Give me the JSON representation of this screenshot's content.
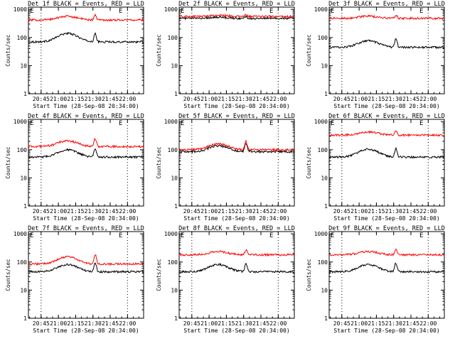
{
  "figure": {
    "y_axis_label": "Counts/sec",
    "x_axis_label": "Start Time (28-Sep-08 20:34:00)",
    "corner_marks": [
      "E",
      "E"
    ],
    "colors": {
      "events": "#000000",
      "lld": "#ff0000",
      "axes": "#000000",
      "background": "#ffffff"
    }
  },
  "chart_data": [
    {
      "type": "line",
      "title": "Det 1f BLACK = Events, RED = LLD",
      "time_ticks": [
        "20:45",
        "21:00",
        "21:15",
        "21:30",
        "21:45",
        "22:00"
      ],
      "y_ticks": [
        "1",
        "10",
        "100",
        "1000"
      ],
      "ylim": [
        1,
        1200
      ],
      "yscale": "log",
      "xlim_minutes": [
        0,
        100
      ],
      "x_tick_minutes": [
        11,
        26,
        41,
        56,
        71,
        86
      ],
      "dotted_x_minutes": [
        11,
        86
      ],
      "series": [
        {
          "name": "Events",
          "base": 70,
          "bump": 2.0,
          "peak": 1.9
        },
        {
          "name": "LLD",
          "base": 420,
          "bump": 1.35,
          "peak": 1.5
        }
      ]
    },
    {
      "type": "line",
      "title": "Det 2f BLACK = Events, RED = LLD",
      "time_ticks": [
        "20:45",
        "21:00",
        "21:15",
        "21:30",
        "21:45",
        "22:00"
      ],
      "y_ticks": [
        "1",
        "10",
        "100",
        "1000"
      ],
      "ylim": [
        1,
        1200
      ],
      "yscale": "log",
      "xlim_minutes": [
        0,
        100
      ],
      "x_tick_minutes": [
        11,
        26,
        41,
        56,
        71,
        86
      ],
      "dotted_x_minutes": [
        11,
        86
      ],
      "series": [
        {
          "name": "Events",
          "base": 480,
          "bump": 1.1,
          "peak": 1.15
        },
        {
          "name": "LLD",
          "base": 560,
          "bump": 1.1,
          "peak": 1.15
        }
      ]
    },
    {
      "type": "line",
      "title": "Det 3f BLACK = Events, RED = LLD",
      "time_ticks": [
        "20:45",
        "21:00",
        "21:15",
        "21:30",
        "21:45",
        "22:00"
      ],
      "y_ticks": [
        "1",
        "10",
        "100",
        "1000"
      ],
      "ylim": [
        1,
        1200
      ],
      "yscale": "log",
      "xlim_minutes": [
        0,
        100
      ],
      "x_tick_minutes": [
        11,
        26,
        41,
        56,
        71,
        86
      ],
      "dotted_x_minutes": [
        11,
        86
      ],
      "series": [
        {
          "name": "Events",
          "base": 45,
          "bump": 1.7,
          "peak": 2.0
        },
        {
          "name": "LLD",
          "base": 480,
          "bump": 1.2,
          "peak": 1.3
        }
      ]
    },
    {
      "type": "line",
      "title": "Det 4f BLACK = Events, RED = LLD",
      "time_ticks": [
        "20:45",
        "21:00",
        "21:15",
        "21:30",
        "21:45",
        "22:00"
      ],
      "y_ticks": [
        "1",
        "10",
        "100",
        "1000"
      ],
      "ylim": [
        1,
        1200
      ],
      "yscale": "log",
      "xlim_minutes": [
        0,
        100
      ],
      "x_tick_minutes": [
        11,
        26,
        41,
        56,
        71,
        86
      ],
      "dotted_x_minutes": [
        11,
        86
      ],
      "series": [
        {
          "name": "Events",
          "base": 55,
          "bump": 1.8,
          "peak": 2.0
        },
        {
          "name": "LLD",
          "base": 130,
          "bump": 1.6,
          "peak": 1.9
        }
      ]
    },
    {
      "type": "line",
      "title": "Det 5f BLACK = Events, RED = LLD",
      "time_ticks": [
        "20:45",
        "21:00",
        "21:15",
        "21:30",
        "21:45",
        "22:00"
      ],
      "y_ticks": [
        "1",
        "10",
        "100",
        "1000"
      ],
      "ylim": [
        1,
        1200
      ],
      "yscale": "log",
      "xlim_minutes": [
        0,
        100
      ],
      "x_tick_minutes": [
        11,
        26,
        41,
        56,
        71,
        86
      ],
      "dotted_x_minutes": [
        11,
        86
      ],
      "series": [
        {
          "name": "Events",
          "base": 85,
          "bump": 1.6,
          "peak": 2.0
        },
        {
          "name": "LLD",
          "base": 100,
          "bump": 1.6,
          "peak": 2.0
        }
      ]
    },
    {
      "type": "line",
      "title": "Det 6f BLACK = Events, RED = LLD",
      "time_ticks": [
        "20:45",
        "21:00",
        "21:15",
        "21:30",
        "21:45",
        "22:00"
      ],
      "y_ticks": [
        "1",
        "10",
        "100",
        "1000"
      ],
      "ylim": [
        1,
        1200
      ],
      "yscale": "log",
      "xlim_minutes": [
        0,
        100
      ],
      "x_tick_minutes": [
        11,
        26,
        41,
        56,
        71,
        86
      ],
      "dotted_x_minutes": [
        11,
        86
      ],
      "series": [
        {
          "name": "Events",
          "base": 55,
          "bump": 1.9,
          "peak": 2.0
        },
        {
          "name": "LLD",
          "base": 330,
          "bump": 1.3,
          "peak": 1.35
        }
      ]
    },
    {
      "type": "line",
      "title": "Det 7f BLACK = Events, RED = LLD",
      "time_ticks": [
        "20:45",
        "21:00",
        "21:15",
        "21:30",
        "21:45",
        "22:00"
      ],
      "y_ticks": [
        "1",
        "10",
        "100",
        "1000"
      ],
      "ylim": [
        1,
        1200
      ],
      "yscale": "log",
      "xlim_minutes": [
        0,
        100
      ],
      "x_tick_minutes": [
        11,
        26,
        41,
        56,
        71,
        86
      ],
      "dotted_x_minutes": [
        11,
        86
      ],
      "series": [
        {
          "name": "Events",
          "base": 45,
          "bump": 1.8,
          "peak": 2.0
        },
        {
          "name": "LLD",
          "base": 85,
          "bump": 1.8,
          "peak": 2.1
        }
      ]
    },
    {
      "type": "line",
      "title": "Det 8f BLACK = Events, RED = LLD",
      "time_ticks": [
        "20:45",
        "21:00",
        "21:15",
        "21:30",
        "21:45",
        "22:00"
      ],
      "y_ticks": [
        "1",
        "10",
        "100",
        "1000"
      ],
      "ylim": [
        1,
        1200
      ],
      "yscale": "log",
      "xlim_minutes": [
        0,
        100
      ],
      "x_tick_minutes": [
        11,
        26,
        41,
        56,
        71,
        86
      ],
      "dotted_x_minutes": [
        11,
        86
      ],
      "series": [
        {
          "name": "Events",
          "base": 45,
          "bump": 1.8,
          "peak": 2.0
        },
        {
          "name": "LLD",
          "base": 180,
          "bump": 1.3,
          "peak": 1.5
        }
      ]
    },
    {
      "type": "line",
      "title": "Det 9f BLACK = Events, RED = LLD",
      "time_ticks": [
        "20:45",
        "21:00",
        "21:15",
        "21:30",
        "21:45",
        "22:00"
      ],
      "y_ticks": [
        "1",
        "10",
        "100",
        "1000"
      ],
      "ylim": [
        1,
        1200
      ],
      "yscale": "log",
      "xlim_minutes": [
        0,
        100
      ],
      "x_tick_minutes": [
        11,
        26,
        41,
        56,
        71,
        86
      ],
      "dotted_x_minutes": [
        11,
        86
      ],
      "series": [
        {
          "name": "Events",
          "base": 45,
          "bump": 1.8,
          "peak": 2.0
        },
        {
          "name": "LLD",
          "base": 180,
          "bump": 1.3,
          "peak": 1.5
        }
      ]
    }
  ]
}
